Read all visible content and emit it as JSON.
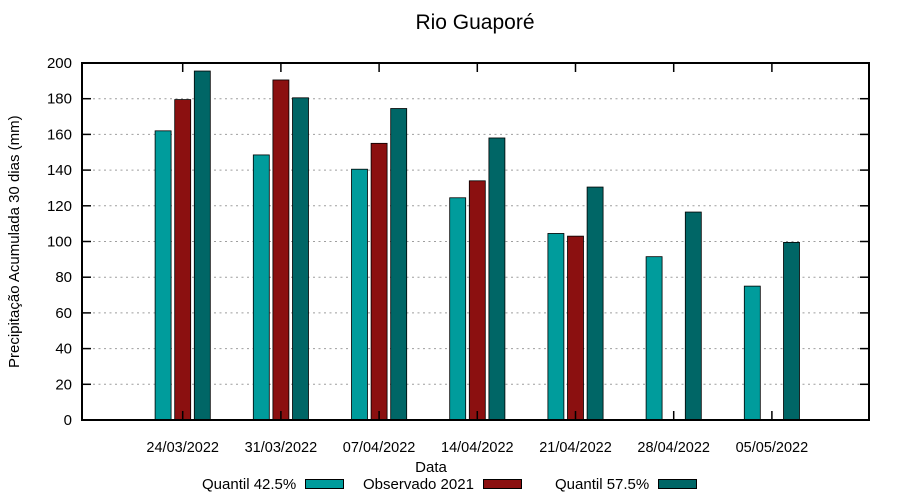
{
  "chart_data": {
    "type": "bar",
    "title": "Rio Guaporé",
    "xlabel": "Data",
    "ylabel": "Precipitação Acumulada 30 dias (mm)",
    "categories": [
      "24/03/2022",
      "31/03/2022",
      "07/04/2022",
      "14/04/2022",
      "21/04/2022",
      "28/04/2022",
      "05/05/2022"
    ],
    "series": [
      {
        "name": "Quantil 42.5%",
        "color": "#009C9C",
        "values": [
          162,
          148.5,
          140.5,
          124.5,
          104.5,
          91.5,
          75
        ]
      },
      {
        "name": "Observado 2021",
        "color": "#8B1010",
        "values": [
          179.5,
          190.5,
          155,
          134,
          103,
          null,
          null
        ]
      },
      {
        "name": "Quantil 57.5%",
        "color": "#006666",
        "values": [
          195.5,
          180.5,
          174.5,
          158,
          130.5,
          116.5,
          99.5
        ]
      }
    ],
    "ylim": [
      0,
      200
    ],
    "ytick_step": 20,
    "legend_position": "below",
    "grid": "horizontal-dotted",
    "grid_color": "#9e9e9e",
    "axis_color": "#000000"
  }
}
